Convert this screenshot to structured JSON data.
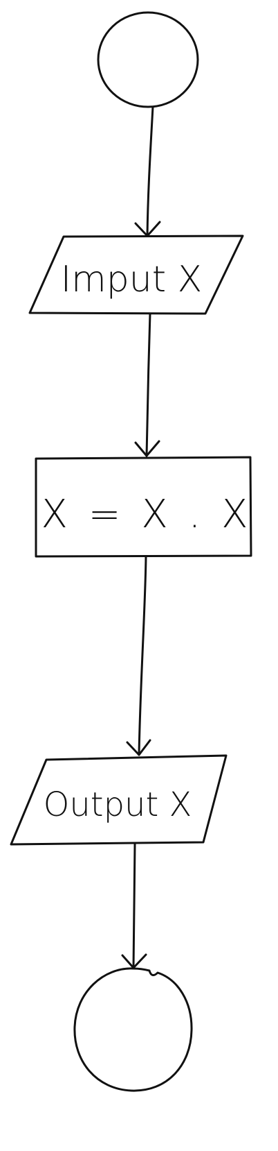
{
  "diagram": {
    "type": "flowchart",
    "nodes": [
      {
        "id": "start",
        "shape": "circle",
        "label": ""
      },
      {
        "id": "input",
        "shape": "parallelogram",
        "label": "Imput X"
      },
      {
        "id": "process",
        "shape": "rectangle",
        "label": "X = X . X"
      },
      {
        "id": "output",
        "shape": "parallelogram",
        "label": "Output X"
      },
      {
        "id": "end",
        "shape": "circle",
        "label": ""
      }
    ],
    "edges": [
      {
        "from": "start",
        "to": "input"
      },
      {
        "from": "input",
        "to": "process"
      },
      {
        "from": "process",
        "to": "output"
      },
      {
        "from": "output",
        "to": "end"
      }
    ],
    "colors": {
      "stroke": "#111111",
      "background": "#ffffff"
    }
  }
}
